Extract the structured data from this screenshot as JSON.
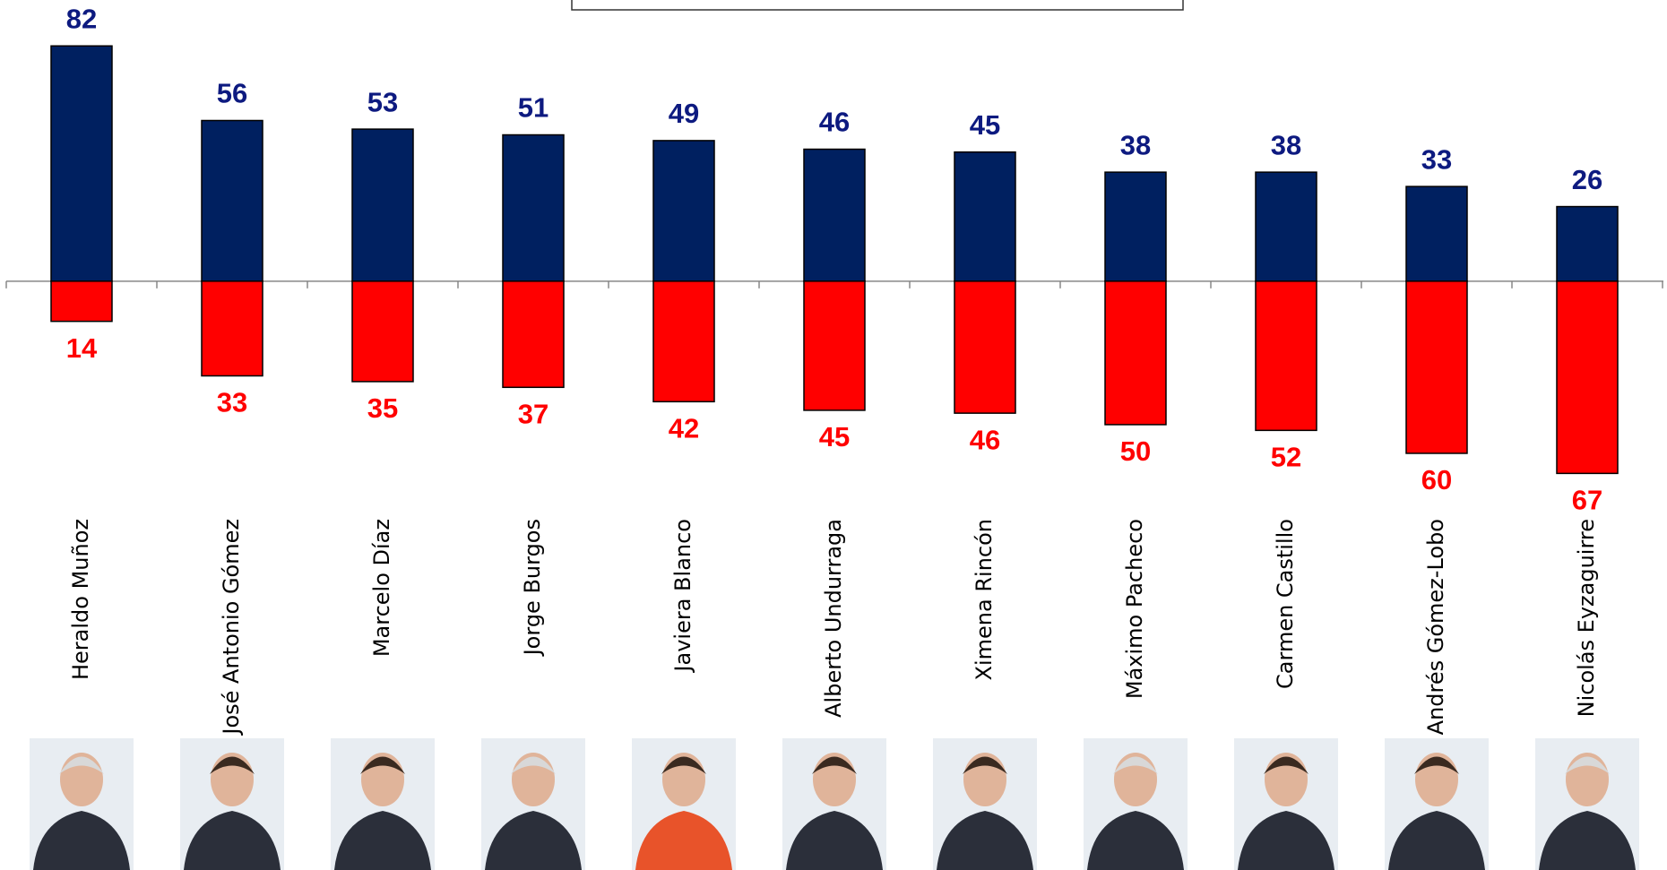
{
  "chart_data": {
    "type": "diverging-bar",
    "categories": [
      "Heraldo Muñoz",
      "José Antonio Gómez",
      "Marcelo Díaz",
      "Jorge Burgos",
      "Javiera Blanco",
      "Alberto Undurraga",
      "Ximena Rincón",
      "Máximo Pacheco",
      "Carmen Castillo",
      "Andrés Gómez-Lobo",
      "Nicolás Eyzaguirre"
    ],
    "series": [
      {
        "color": "#002060",
        "label_color": "#0d1a80",
        "values": [
          82,
          56,
          53,
          51,
          49,
          46,
          45,
          38,
          38,
          33,
          26
        ]
      },
      {
        "color": "#ff0000",
        "label_color": "#ff0000",
        "values": [
          -14,
          -33,
          -35,
          -37,
          -42,
          -45,
          -46,
          -50,
          -52,
          -60,
          -67
        ],
        "value_labels": [
          "14",
          "33",
          "35",
          "37",
          "42",
          "45",
          "46",
          "50",
          "52",
          "60",
          "67"
        ]
      }
    ],
    "ylim": [
      -75,
      98
    ]
  }
}
